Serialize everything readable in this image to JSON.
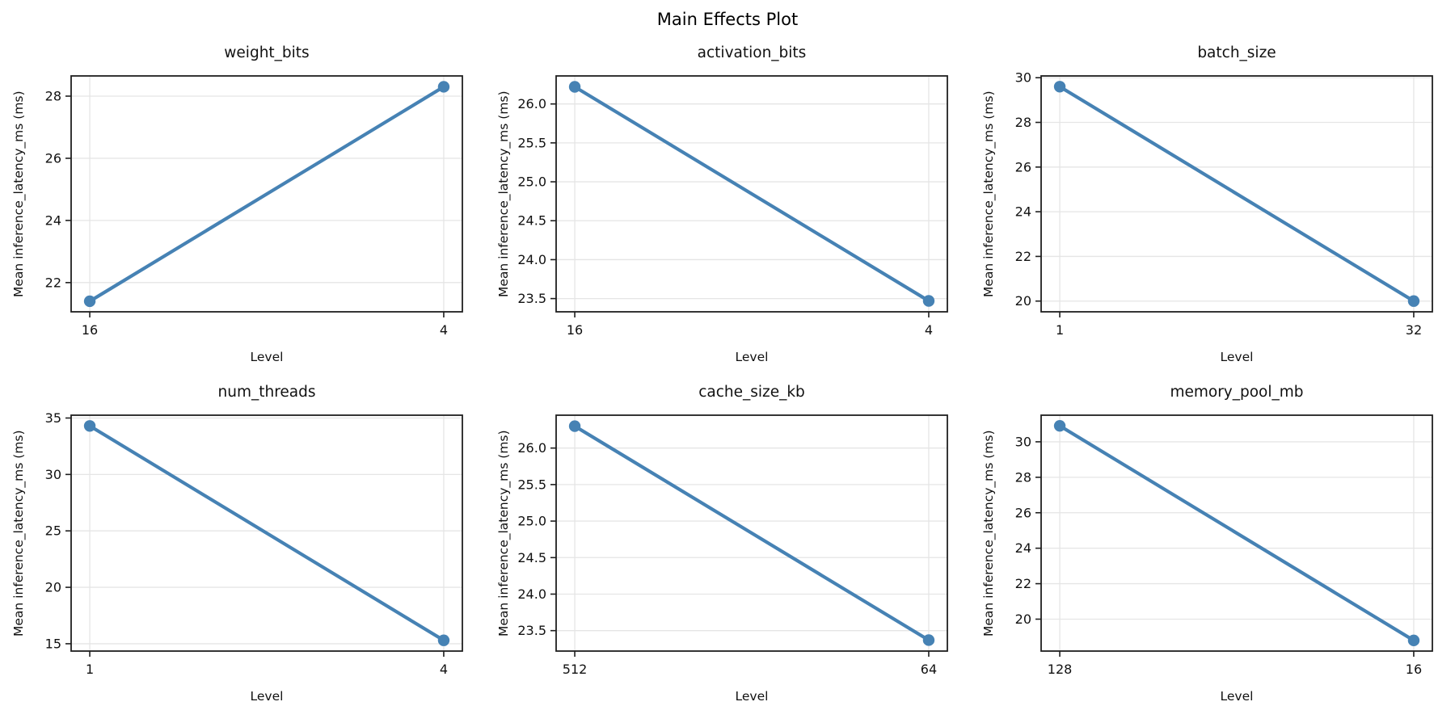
{
  "suptitle": "Main Effects Plot",
  "style": {
    "accent_color": "#4682B4",
    "grid_color": "#e5e5e5",
    "spine_color": "#1f1f1f",
    "text_color": "#111111"
  },
  "chart_data": [
    {
      "type": "line",
      "title": "weight_bits",
      "xlabel": "Level",
      "ylabel": "Mean inference_latency_ms (ms)",
      "categories": [
        "16",
        "4"
      ],
      "values": [
        21.4,
        28.3
      ],
      "ylim": [
        21.06,
        28.65
      ],
      "yticks": [
        22,
        24,
        26,
        28
      ],
      "ytick_labels": [
        "22",
        "24",
        "26",
        "28"
      ],
      "grid": true,
      "legend": "none"
    },
    {
      "type": "line",
      "title": "activation_bits",
      "xlabel": "Level",
      "ylabel": "Mean inference_latency_ms (ms)",
      "categories": [
        "16",
        "4"
      ],
      "values": [
        26.22,
        23.47
      ],
      "ylim": [
        23.33,
        26.36
      ],
      "yticks": [
        23.5,
        24.0,
        24.5,
        25.0,
        25.5,
        26.0
      ],
      "ytick_labels": [
        "23.5",
        "24.0",
        "24.5",
        "25.0",
        "25.5",
        "26.0"
      ],
      "grid": true,
      "legend": "none"
    },
    {
      "type": "line",
      "title": "batch_size",
      "xlabel": "Level",
      "ylabel": "Mean inference_latency_ms (ms)",
      "categories": [
        "1",
        "32"
      ],
      "values": [
        29.6,
        20.0
      ],
      "ylim": [
        19.52,
        30.08
      ],
      "yticks": [
        20,
        22,
        24,
        26,
        28,
        30
      ],
      "ytick_labels": [
        "20",
        "22",
        "24",
        "26",
        "28",
        "30"
      ],
      "grid": true,
      "legend": "none"
    },
    {
      "type": "line",
      "title": "num_threads",
      "xlabel": "Level",
      "ylabel": "Mean inference_latency_ms (ms)",
      "categories": [
        "1",
        "4"
      ],
      "values": [
        34.3,
        15.3
      ],
      "ylim": [
        14.35,
        35.25
      ],
      "yticks": [
        15,
        20,
        25,
        30,
        35
      ],
      "ytick_labels": [
        "15",
        "20",
        "25",
        "30",
        "35"
      ],
      "grid": true,
      "legend": "none"
    },
    {
      "type": "line",
      "title": "cache_size_kb",
      "xlabel": "Level",
      "ylabel": "Mean inference_latency_ms (ms)",
      "categories": [
        "512",
        "64"
      ],
      "values": [
        26.3,
        23.37
      ],
      "ylim": [
        23.22,
        26.45
      ],
      "yticks": [
        23.5,
        24.0,
        24.5,
        25.0,
        25.5,
        26.0
      ],
      "ytick_labels": [
        "23.5",
        "24.0",
        "24.5",
        "25.0",
        "25.5",
        "26.0"
      ],
      "grid": true,
      "legend": "none"
    },
    {
      "type": "line",
      "title": "memory_pool_mb",
      "xlabel": "Level",
      "ylabel": "Mean inference_latency_ms (ms)",
      "categories": [
        "128",
        "16"
      ],
      "values": [
        30.9,
        18.8
      ],
      "ylim": [
        18.2,
        31.5
      ],
      "yticks": [
        20,
        22,
        24,
        26,
        28,
        30
      ],
      "ytick_labels": [
        "20",
        "22",
        "24",
        "26",
        "28",
        "30"
      ],
      "grid": true,
      "legend": "none"
    }
  ]
}
